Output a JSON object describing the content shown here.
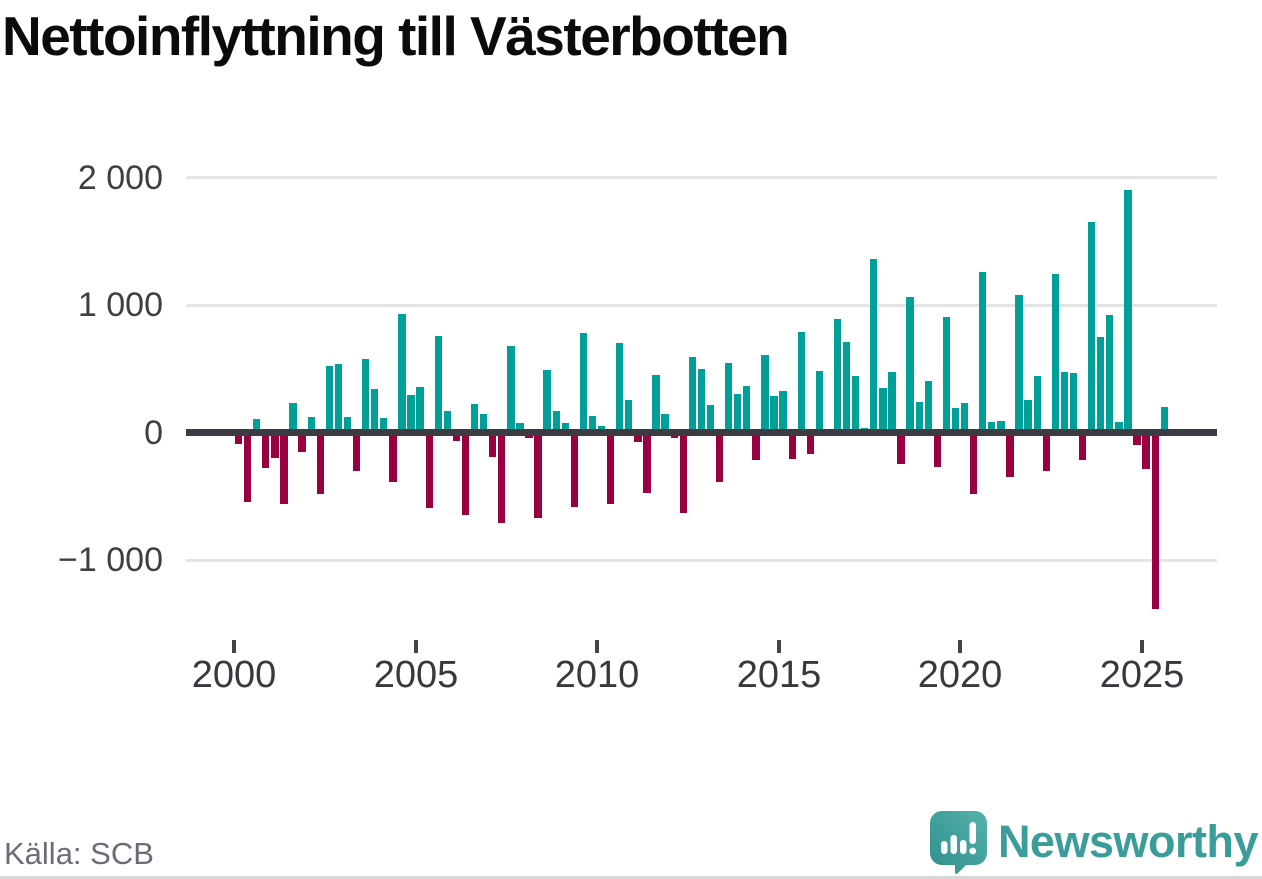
{
  "title": "Nettoinflyttning till Västerbotten",
  "source": "Källa: SCB",
  "logo": {
    "text": "Newsworthy",
    "icon": "newsworthy-bubble-barchart-icon"
  },
  "colors": {
    "positive_bar": "#00a099",
    "negative_bar": "#990040",
    "zero_line": "#3b3b41",
    "gridline": "#e4e4e4",
    "axis_text": "#3e3e45",
    "title_text": "#0b0b0c",
    "source_text": "#6c6c78",
    "logo_teal": "#3a9d99"
  },
  "chart_data": {
    "type": "bar",
    "title": "Nettoinflyttning till Västerbotten",
    "xlabel": "",
    "ylabel": "",
    "x_unit": "quarter",
    "grid": "horizontal",
    "legend": "none",
    "ylim": [
      -1500,
      2100
    ],
    "y_ticks": [
      2000,
      1000,
      0,
      -1000
    ],
    "y_tick_labels": [
      "2 000",
      "1 000",
      "0",
      "−1 000"
    ],
    "x_tick_years": [
      2000,
      2005,
      2010,
      2015,
      2020,
      2025
    ],
    "x_tick_labels": [
      "2000",
      "2005",
      "2010",
      "2015",
      "2020",
      "2025"
    ],
    "positive_color": "#00a099",
    "negative_color": "#990040",
    "points": [
      {
        "period": "2000K1",
        "value": -90
      },
      {
        "period": "2000K2",
        "value": -545
      },
      {
        "period": "2000K3",
        "value": 107
      },
      {
        "period": "2000K4",
        "value": -280
      },
      {
        "period": "2001K1",
        "value": -198
      },
      {
        "period": "2001K2",
        "value": -563
      },
      {
        "period": "2001K3",
        "value": 232
      },
      {
        "period": "2001K4",
        "value": -154
      },
      {
        "period": "2002K1",
        "value": 120
      },
      {
        "period": "2002K2",
        "value": -479
      },
      {
        "period": "2002K3",
        "value": 521
      },
      {
        "period": "2002K4",
        "value": 536
      },
      {
        "period": "2003K1",
        "value": 125
      },
      {
        "period": "2003K2",
        "value": -302
      },
      {
        "period": "2003K3",
        "value": 578
      },
      {
        "period": "2003K4",
        "value": 344
      },
      {
        "period": "2004K1",
        "value": 115
      },
      {
        "period": "2004K2",
        "value": -388
      },
      {
        "period": "2004K3",
        "value": 932
      },
      {
        "period": "2004K4",
        "value": 294
      },
      {
        "period": "2005K1",
        "value": 360
      },
      {
        "period": "2005K2",
        "value": -590
      },
      {
        "period": "2005K3",
        "value": 760
      },
      {
        "period": "2005K4",
        "value": 167
      },
      {
        "period": "2006K1",
        "value": -70
      },
      {
        "period": "2006K2",
        "value": -648
      },
      {
        "period": "2006K3",
        "value": 224
      },
      {
        "period": "2006K4",
        "value": 146
      },
      {
        "period": "2007K1",
        "value": -188
      },
      {
        "period": "2007K2",
        "value": -708
      },
      {
        "period": "2007K3",
        "value": 680
      },
      {
        "period": "2007K4",
        "value": 73
      },
      {
        "period": "2008K1",
        "value": -45
      },
      {
        "period": "2008K2",
        "value": -670
      },
      {
        "period": "2008K3",
        "value": 490
      },
      {
        "period": "2008K4",
        "value": 167
      },
      {
        "period": "2009K1",
        "value": 73
      },
      {
        "period": "2009K2",
        "value": -583
      },
      {
        "period": "2009K3",
        "value": 784
      },
      {
        "period": "2009K4",
        "value": 133
      },
      {
        "period": "2010K1",
        "value": 55
      },
      {
        "period": "2010K2",
        "value": -563
      },
      {
        "period": "2010K3",
        "value": 703
      },
      {
        "period": "2010K4",
        "value": 258
      },
      {
        "period": "2011K1",
        "value": -76
      },
      {
        "period": "2011K2",
        "value": -474
      },
      {
        "period": "2011K3",
        "value": 450
      },
      {
        "period": "2011K4",
        "value": 148
      },
      {
        "period": "2012K1",
        "value": -42
      },
      {
        "period": "2012K2",
        "value": -630
      },
      {
        "period": "2012K3",
        "value": 589
      },
      {
        "period": "2012K4",
        "value": 497
      },
      {
        "period": "2013K1",
        "value": 216
      },
      {
        "period": "2013K2",
        "value": -388
      },
      {
        "period": "2013K3",
        "value": 542
      },
      {
        "period": "2013K4",
        "value": 302
      },
      {
        "period": "2014K1",
        "value": 367
      },
      {
        "period": "2014K2",
        "value": -214
      },
      {
        "period": "2014K3",
        "value": 612
      },
      {
        "period": "2014K4",
        "value": 284
      },
      {
        "period": "2015K1",
        "value": 328
      },
      {
        "period": "2015K2",
        "value": -210
      },
      {
        "period": "2015K3",
        "value": 789
      },
      {
        "period": "2015K4",
        "value": -165
      },
      {
        "period": "2016K1",
        "value": 484
      },
      {
        "period": "2016K2",
        "value": 15
      },
      {
        "period": "2016K3",
        "value": 888
      },
      {
        "period": "2016K4",
        "value": 711
      },
      {
        "period": "2017K1",
        "value": 443
      },
      {
        "period": "2017K2",
        "value": 36
      },
      {
        "period": "2017K3",
        "value": 1360
      },
      {
        "period": "2017K4",
        "value": 349
      },
      {
        "period": "2018K1",
        "value": 471
      },
      {
        "period": "2018K2",
        "value": -245
      },
      {
        "period": "2018K3",
        "value": 1060
      },
      {
        "period": "2018K4",
        "value": 237
      },
      {
        "period": "2019K1",
        "value": 401
      },
      {
        "period": "2019K2",
        "value": -271
      },
      {
        "period": "2019K3",
        "value": 905
      },
      {
        "period": "2019K4",
        "value": 190
      },
      {
        "period": "2020K1",
        "value": 232
      },
      {
        "period": "2020K2",
        "value": -484
      },
      {
        "period": "2020K3",
        "value": 1260
      },
      {
        "period": "2020K4",
        "value": 86
      },
      {
        "period": "2021K1",
        "value": 94
      },
      {
        "period": "2021K2",
        "value": -349
      },
      {
        "period": "2021K3",
        "value": 1075
      },
      {
        "period": "2021K4",
        "value": 255
      },
      {
        "period": "2022K1",
        "value": 440
      },
      {
        "period": "2022K2",
        "value": -305
      },
      {
        "period": "2022K3",
        "value": 1240
      },
      {
        "period": "2022K4",
        "value": 477
      },
      {
        "period": "2023K1",
        "value": 469
      },
      {
        "period": "2023K2",
        "value": -214
      },
      {
        "period": "2023K3",
        "value": 1650
      },
      {
        "period": "2023K4",
        "value": 750
      },
      {
        "period": "2024K1",
        "value": 920
      },
      {
        "period": "2024K2",
        "value": 86
      },
      {
        "period": "2024K3",
        "value": 1905
      },
      {
        "period": "2024K4",
        "value": -94
      },
      {
        "period": "2025K1",
        "value": -284
      },
      {
        "period": "2025K2",
        "value": -1380
      },
      {
        "period": "2025K3",
        "value": 198
      }
    ]
  }
}
